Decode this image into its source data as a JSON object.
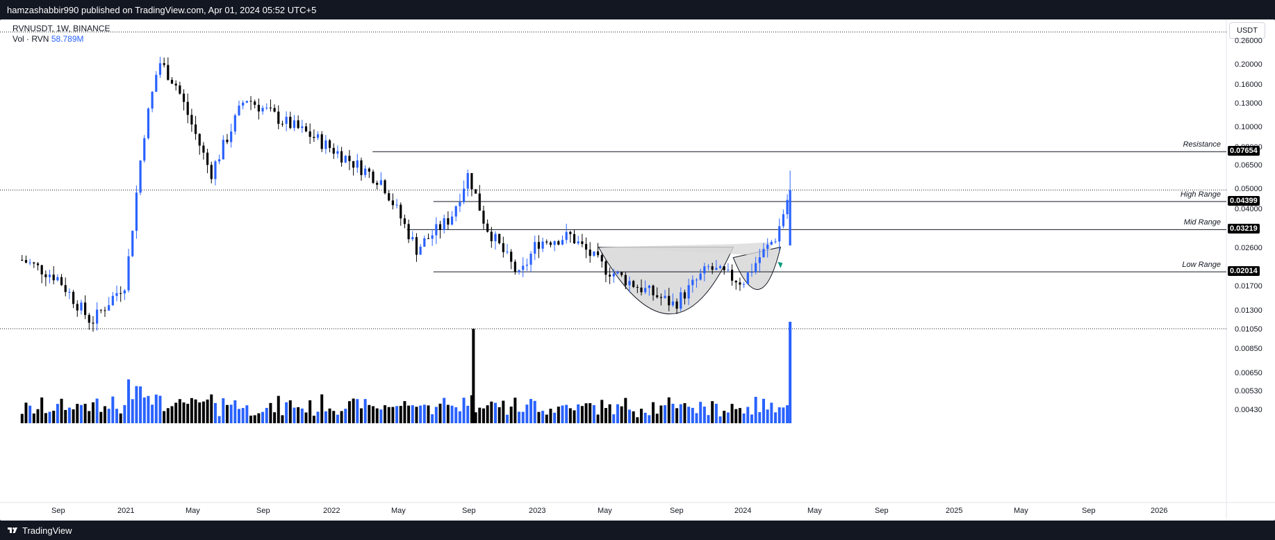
{
  "header": {
    "published": "hamzashabbir990 published on TradingView.com, Apr 01, 2024 05:52 UTC+5"
  },
  "footer": {
    "brand": "TradingView"
  },
  "legend": {
    "symbol": "RVNUSDT, 1W, BINANCE",
    "vol_label": "Vol · RVN",
    "vol_value": "58.789M"
  },
  "currency": "USDT",
  "chart_data": {
    "type": "candlestick",
    "symbol": "RVNUSDT",
    "interval": "1W",
    "exchange": "BINANCE",
    "price_scale": "log",
    "price_ticks": [
      "0.26000",
      "0.20000",
      "0.16000",
      "0.13000",
      "0.10000",
      "0.08000",
      "0.06500",
      "0.05000",
      "0.04000",
      "0.02600",
      "0.01700",
      "0.01300",
      "0.01050",
      "0.00850",
      "0.00650",
      "0.00530",
      "0.00430"
    ],
    "time_ticks": [
      "Sep",
      "2021",
      "May",
      "Sep",
      "2022",
      "May",
      "Sep",
      "2023",
      "May",
      "Sep",
      "2024",
      "May",
      "Sep",
      "2025",
      "May",
      "Sep",
      "2026"
    ],
    "levels": [
      {
        "name": "Resistance",
        "price": "0.07654"
      },
      {
        "name": "High Range",
        "price": "0.04399"
      },
      {
        "name": "Mid Range",
        "price": "0.03219"
      },
      {
        "name": "Low Range",
        "price": "0.02014"
      }
    ],
    "patterns": [
      "cup-and-handle"
    ],
    "series": [
      {
        "name": "Price",
        "period": "2020-07 to 2024-03",
        "close_points": [
          [
            "2020-07",
            0.023
          ],
          [
            "2020-09",
            0.019
          ],
          [
            "2020-11",
            0.0115
          ],
          [
            "2021-01",
            0.018
          ],
          [
            "2021-02",
            0.09
          ],
          [
            "2021-03",
            0.21
          ],
          [
            "2021-04",
            0.16
          ],
          [
            "2021-06",
            0.06
          ],
          [
            "2021-08",
            0.14
          ],
          [
            "2021-10",
            0.11
          ],
          [
            "2021-12",
            0.09
          ],
          [
            "2022-02",
            0.07
          ],
          [
            "2022-04",
            0.055
          ],
          [
            "2022-06",
            0.026
          ],
          [
            "2022-08",
            0.037
          ],
          [
            "2022-09",
            0.06
          ],
          [
            "2022-10",
            0.034
          ],
          [
            "2022-12",
            0.019
          ],
          [
            "2023-01",
            0.028
          ],
          [
            "2023-03",
            0.03
          ],
          [
            "2023-05",
            0.021
          ],
          [
            "2023-07",
            0.017
          ],
          [
            "2023-09",
            0.014
          ],
          [
            "2023-11",
            0.021
          ],
          [
            "2024-01",
            0.018
          ],
          [
            "2024-02",
            0.024
          ],
          [
            "2024-03",
            0.03
          ],
          [
            "2024-03-25",
            0.05
          ]
        ]
      }
    ]
  }
}
